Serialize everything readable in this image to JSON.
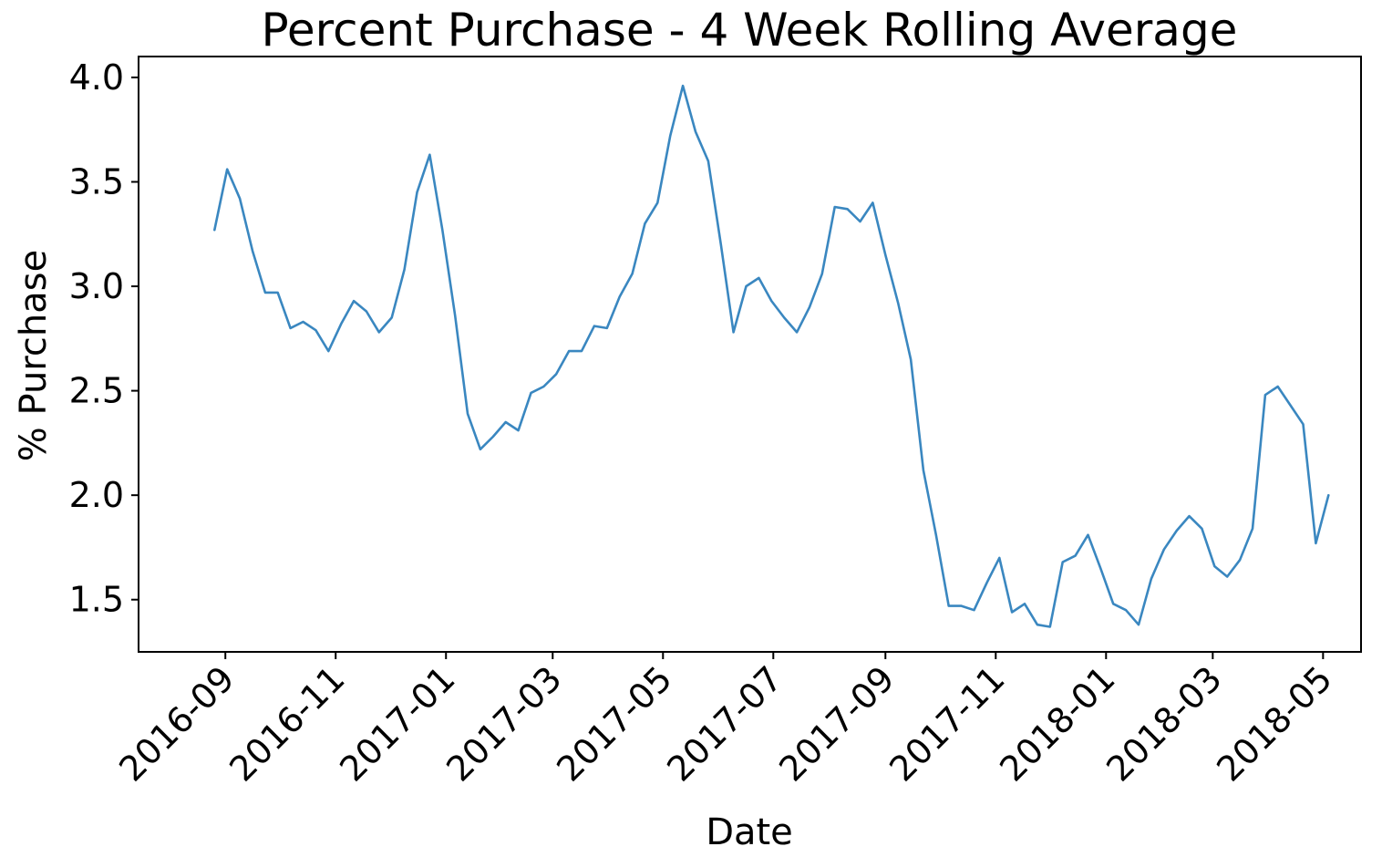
{
  "chart_data": {
    "type": "line",
    "title": "Percent Purchase - 4 Week Rolling Average",
    "xlabel": "Date",
    "ylabel": "% Purchase",
    "x_axis_type": "date",
    "xlim": [
      "2016-07-15",
      "2018-05-22"
    ],
    "ylim": [
      1.25,
      4.1
    ],
    "x_ticks": [
      "2016-09-01",
      "2016-11-01",
      "2017-01-01",
      "2017-03-01",
      "2017-05-01",
      "2017-07-01",
      "2017-09-01",
      "2017-11-01",
      "2018-01-01",
      "2018-03-01",
      "2018-05-01"
    ],
    "x_tick_labels": [
      "2016-09",
      "2016-11",
      "2017-01",
      "2017-03",
      "2017-05",
      "2017-07",
      "2017-09",
      "2017-11",
      "2018-01",
      "2018-03",
      "2018-05"
    ],
    "y_ticks": [
      1.5,
      2.0,
      2.5,
      3.0,
      3.5,
      4.0
    ],
    "y_tick_labels": [
      "1.5",
      "2.0",
      "2.5",
      "3.0",
      "3.5",
      "4.0"
    ],
    "grid": false,
    "legend": "none",
    "colors": {
      "line": "#3a87c0",
      "frame": "#000000"
    },
    "series": [
      {
        "x": [
          "2016-08-26",
          "2016-09-02",
          "2016-09-09",
          "2016-09-16",
          "2016-09-23",
          "2016-09-30",
          "2016-10-07",
          "2016-10-14",
          "2016-10-21",
          "2016-10-28",
          "2016-11-04",
          "2016-11-11",
          "2016-11-18",
          "2016-11-25",
          "2016-12-02",
          "2016-12-09",
          "2016-12-16",
          "2016-12-23",
          "2016-12-30",
          "2017-01-06",
          "2017-01-13",
          "2017-01-20",
          "2017-01-27",
          "2017-02-03",
          "2017-02-10",
          "2017-02-17",
          "2017-02-24",
          "2017-03-03",
          "2017-03-10",
          "2017-03-17",
          "2017-03-24",
          "2017-03-31",
          "2017-04-07",
          "2017-04-14",
          "2017-04-21",
          "2017-04-28",
          "2017-05-05",
          "2017-05-12",
          "2017-05-19",
          "2017-05-26",
          "2017-06-02",
          "2017-06-09",
          "2017-06-16",
          "2017-06-23",
          "2017-06-30",
          "2017-07-07",
          "2017-07-14",
          "2017-07-21",
          "2017-07-28",
          "2017-08-04",
          "2017-08-11",
          "2017-08-18",
          "2017-08-25",
          "2017-09-01",
          "2017-09-08",
          "2017-09-15",
          "2017-09-22",
          "2017-09-29",
          "2017-10-06",
          "2017-10-13",
          "2017-10-20",
          "2017-10-27",
          "2017-11-03",
          "2017-11-10",
          "2017-11-17",
          "2017-11-24",
          "2017-12-01",
          "2017-12-08",
          "2017-12-15",
          "2017-12-22",
          "2017-12-29",
          "2018-01-05",
          "2018-01-12",
          "2018-01-19",
          "2018-01-26",
          "2018-02-02",
          "2018-02-09",
          "2018-02-16",
          "2018-02-23",
          "2018-03-02",
          "2018-03-09",
          "2018-03-16",
          "2018-03-23",
          "2018-03-30",
          "2018-04-06",
          "2018-04-13",
          "2018-04-20",
          "2018-04-27",
          "2018-05-04"
        ],
        "y": [
          3.27,
          3.56,
          3.42,
          3.17,
          2.97,
          2.97,
          2.8,
          2.83,
          2.79,
          2.69,
          2.82,
          2.93,
          2.88,
          2.78,
          2.85,
          3.08,
          3.45,
          3.63,
          3.27,
          2.86,
          2.39,
          2.22,
          2.28,
          2.35,
          2.31,
          2.49,
          2.52,
          2.58,
          2.69,
          2.69,
          2.81,
          2.8,
          2.95,
          3.06,
          3.3,
          3.4,
          3.72,
          3.96,
          3.74,
          3.6,
          3.2,
          2.78,
          3.0,
          3.04,
          2.93,
          2.85,
          2.78,
          2.9,
          3.06,
          3.38,
          3.37,
          3.31,
          3.4,
          3.15,
          2.92,
          2.65,
          2.12,
          1.81,
          1.47,
          1.47,
          1.45,
          1.58,
          1.7,
          1.44,
          1.48,
          1.38,
          1.37,
          1.68,
          1.71,
          1.81,
          1.65,
          1.48,
          1.45,
          1.38,
          1.6,
          1.74,
          1.83,
          1.9,
          1.84,
          1.66,
          1.61,
          1.69,
          1.84,
          2.48,
          2.52,
          2.43,
          2.34,
          1.77,
          2.0
        ]
      }
    ]
  }
}
